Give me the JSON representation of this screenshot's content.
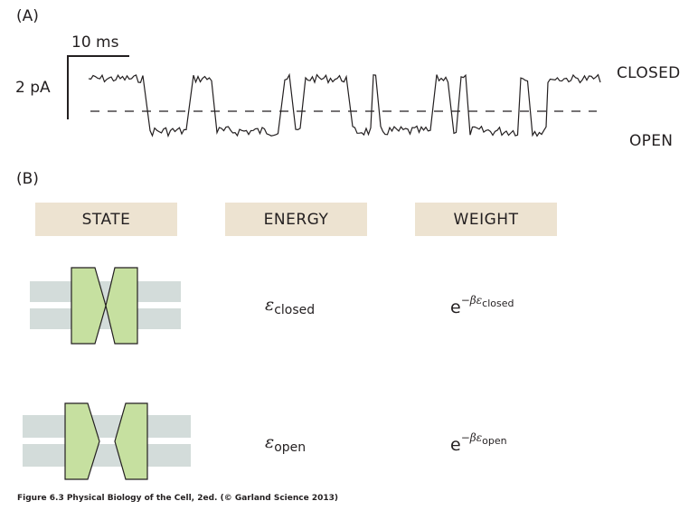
{
  "panel_a": {
    "label": "(A)",
    "scale_time": "10 ms",
    "scale_current": "2 pA",
    "state_closed": "CLOSED",
    "state_open": "OPEN"
  },
  "panel_b": {
    "label": "(B)",
    "headers": {
      "state": "STATE",
      "energy": "ENERGY",
      "weight": "WEIGHT"
    },
    "rows": [
      {
        "name": "closed",
        "energy_symbol": "ε",
        "energy_sub": "closed",
        "weight_base": "e",
        "weight_exp": "−βε",
        "weight_sub": "closed"
      },
      {
        "name": "open",
        "energy_symbol": "ε",
        "energy_sub": "open",
        "weight_base": "e",
        "weight_exp": "−βε",
        "weight_sub": "open"
      }
    ]
  },
  "colors": {
    "text": "#231f20",
    "header_bg": "#ede3d1",
    "membrane": "#d3dcda",
    "channel_fill": "#c6e0a0",
    "channel_stroke": "#231f20"
  },
  "caption": "Figure 6.3  Physical Biology of the Cell, 2ed. (© Garland Science 2013)"
}
